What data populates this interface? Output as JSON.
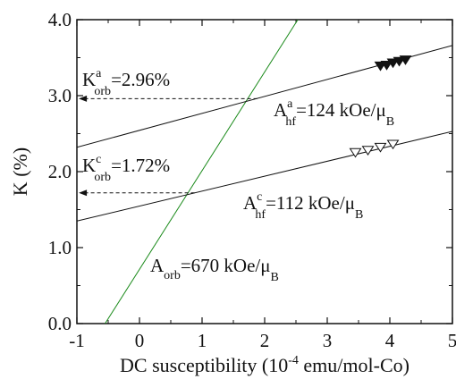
{
  "chart_data": {
    "type": "line",
    "xlabel": {
      "pre": "DC susceptibility (10",
      "sup": "-4",
      "post": " emu/mol-Co)"
    },
    "ylabel": "K (%)",
    "xlim": [
      -1,
      5
    ],
    "ylim": [
      0.0,
      4.0
    ],
    "x_ticks": [
      "-1",
      "0",
      "1",
      "2",
      "3",
      "4",
      "5"
    ],
    "y_ticks": [
      "0.0",
      "1.0",
      "2.0",
      "3.0",
      "4.0"
    ],
    "grid": false,
    "lines": [
      {
        "name": "orb",
        "color": "#1a8a1a",
        "points": [
          [
            -0.55,
            0.0
          ],
          [
            2.53,
            4.0
          ]
        ]
      },
      {
        "name": "a",
        "color": "#111111",
        "points": [
          [
            -1,
            2.32
          ],
          [
            5,
            3.66
          ]
        ]
      },
      {
        "name": "c",
        "color": "#111111",
        "points": [
          [
            -1,
            1.35
          ],
          [
            5,
            2.53
          ]
        ]
      }
    ],
    "series": [
      {
        "marker": "triangle-down-filled",
        "points": [
          [
            3.85,
            3.4
          ],
          [
            3.95,
            3.41
          ],
          [
            4.05,
            3.44
          ],
          [
            4.15,
            3.46
          ],
          [
            4.25,
            3.48
          ]
        ]
      },
      {
        "marker": "triangle-down-open",
        "points": [
          [
            3.45,
            2.26
          ],
          [
            3.65,
            2.29
          ],
          [
            3.85,
            2.33
          ],
          [
            4.05,
            2.37
          ]
        ]
      }
    ],
    "arrows": [
      {
        "from": [
          1.88,
          2.96
        ],
        "to": [
          -0.97,
          2.96
        ]
      },
      {
        "from": [
          0.88,
          1.72
        ],
        "to": [
          -0.97,
          1.72
        ]
      }
    ],
    "annotations": [
      {
        "id": "k-orb-a",
        "base": "K",
        "sup": "a",
        "sub": "orb",
        "post": "=2.96%"
      },
      {
        "id": "k-orb-c",
        "base": "K",
        "sup": "c",
        "sub": "orb",
        "post": "=1.72%"
      },
      {
        "id": "a-hf-a",
        "base": "A",
        "sup": "a",
        "sub": "hf",
        "post": "=124 kOe/μ",
        "tail_sub": "B"
      },
      {
        "id": "a-hf-c",
        "base": "A",
        "sup": "c",
        "sub": "hf",
        "post": "=112 kOe/μ",
        "tail_sub": "B"
      },
      {
        "id": "a-orb",
        "base": "A",
        "sup": "",
        "sub": "orb",
        "post": "=670 kOe/μ",
        "tail_sub": "B"
      }
    ]
  }
}
